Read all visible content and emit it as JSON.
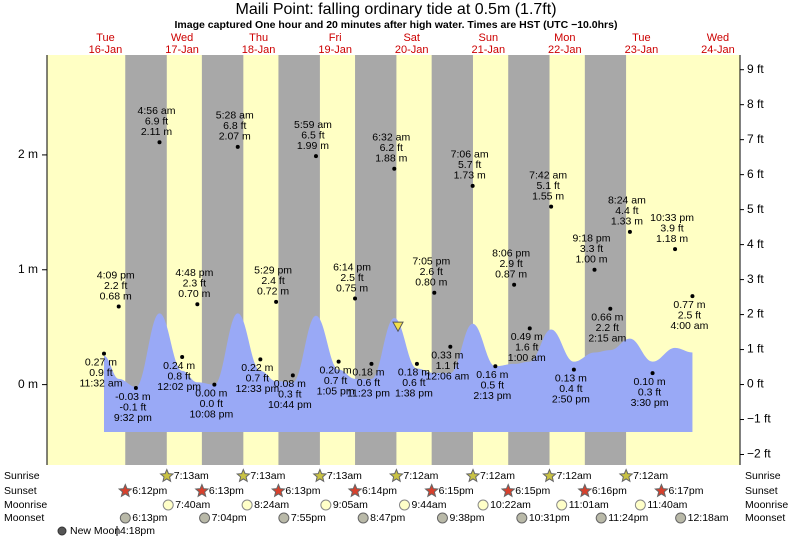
{
  "chart_data": {
    "type": "tide",
    "title": "Maili Point: falling  ordinary tide at 0.5m (1.7ft)",
    "subtitle": "Image captured One hour and 20 minutes after high water. Times are HST (UTC −10.0hrs)",
    "current_level": 0.5,
    "days": [
      "Tue",
      "Wed",
      "Thu",
      "Fri",
      "Sat",
      "Sun",
      "Mon",
      "Tue",
      "Wed"
    ],
    "categories": [
      "16-Jan",
      "17-Jan",
      "18-Jan",
      "19-Jan",
      "20-Jan",
      "21-Jan",
      "22-Jan",
      "23-Jan",
      "24-Jan"
    ],
    "ylim": [
      -0.7,
      2.87
    ],
    "yticks": [
      {
        "value": 0,
        "label": "0 m"
      },
      {
        "value": 1,
        "label": "1 m"
      },
      {
        "value": 2,
        "label": "2 m"
      }
    ],
    "y2lim": [
      -2.3,
      9.42
    ],
    "y2ticks": [
      {
        "value": -2,
        "label": "−2 ft"
      },
      {
        "value": -1,
        "label": "−1 ft"
      },
      {
        "value": 0,
        "label": "0 ft"
      },
      {
        "value": 1,
        "label": "1 ft"
      },
      {
        "value": 2,
        "label": "2 ft"
      },
      {
        "value": 3,
        "label": "3 ft"
      },
      {
        "value": 4,
        "label": "4 ft"
      },
      {
        "value": 5,
        "label": "5 ft"
      },
      {
        "value": 6,
        "label": "6 ft"
      },
      {
        "value": 7,
        "label": "7 ft"
      },
      {
        "value": 8,
        "label": "8 ft"
      },
      {
        "value": 9,
        "label": "9 ft"
      }
    ],
    "colors": {
      "day": "#ffffc4",
      "night": "#a8a8a8",
      "water": "#99a9f6",
      "day_label": "#cc0000"
    },
    "extremes": {
      "dates": [
        "16-Jan",
        "16-Jan",
        "16-Jan",
        "17-Jan",
        "17-Jan",
        "17-Jan",
        "17-Jan",
        "18-Jan",
        "18-Jan",
        "18-Jan",
        "18-Jan",
        "19-Jan",
        "19-Jan",
        "19-Jan",
        "19-Jan",
        "20-Jan",
        "20-Jan",
        "20-Jan",
        "21-Jan",
        "21-Jan",
        "21-Jan",
        "21-Jan",
        "22-Jan",
        "22-Jan",
        "22-Jan",
        "22-Jan",
        "23-Jan",
        "23-Jan",
        "23-Jan",
        "23-Jan",
        "24-Jan"
      ],
      "times": [
        "11:32 am",
        "4:09 pm",
        "9:32 pm",
        "4:56 am",
        "12:02 pm",
        "4:48 pm",
        "10:08 pm",
        "5:28 am",
        "12:33 pm",
        "5:29 pm",
        "10:44 pm",
        "5:59 am",
        "1:05 pm",
        "6:14 pm",
        "11:23 pm",
        "6:32 am",
        "1:38 pm",
        "7:05 pm",
        "12:06 am",
        "7:06 am",
        "2:13 pm",
        "8:06 pm",
        "1:00 am",
        "7:42 am",
        "2:50 pm",
        "9:18 pm",
        "2:15 am",
        "8:24 am",
        "3:30 pm",
        "10:33 pm",
        "4:00 am"
      ],
      "values": [
        0.27,
        0.68,
        -0.03,
        2.11,
        0.24,
        0.7,
        0.0,
        2.07,
        0.22,
        0.72,
        0.08,
        1.99,
        0.2,
        0.75,
        0.18,
        1.88,
        0.18,
        0.8,
        0.33,
        1.73,
        0.16,
        0.87,
        0.49,
        1.55,
        0.13,
        1.0,
        0.66,
        1.33,
        0.1,
        1.18,
        0.77
      ],
      "value_labels": [
        "0.27 m",
        "0.68 m",
        "-0.03 m",
        "2.11 m",
        "0.24 m",
        "0.70 m",
        "0.00 m",
        "2.07 m",
        "0.22 m",
        "0.72 m",
        "0.08 m",
        "1.99 m",
        "0.20 m",
        "0.75 m",
        "0.18 m",
        "1.88 m",
        "0.18 m",
        "0.80 m",
        "0.33 m",
        "1.73 m",
        "0.16 m",
        "0.87 m",
        "0.49 m",
        "1.55 m",
        "0.13 m",
        "1.00 m",
        "0.66 m",
        "1.33 m",
        "0.10 m",
        "1.18 m",
        "0.77 m"
      ],
      "ft_labels": [
        "0.9 ft",
        "2.2 ft",
        "-0.1 ft",
        "6.9 ft",
        "0.8 ft",
        "2.3 ft",
        "0.0 ft",
        "6.8 ft",
        "0.7 ft",
        "2.4 ft",
        "0.3 ft",
        "6.5 ft",
        "0.7 ft",
        "2.5 ft",
        "0.6 ft",
        "6.2 ft",
        "0.6 ft",
        "2.6 ft",
        "1.1 ft",
        "5.7 ft",
        "0.5 ft",
        "2.9 ft",
        "1.6 ft",
        "5.1 ft",
        "0.4 ft",
        "3.3 ft",
        "2.2 ft",
        "4.4 ft",
        "0.3 ft",
        "3.9 ft",
        "2.5 ft"
      ],
      "curve_values": [
        0.25,
        0.05,
        -0.02,
        0.62,
        0.12,
        0.02,
        0.0,
        0.62,
        0.12,
        0.03,
        0.02,
        0.6,
        0.13,
        0.05,
        0.05,
        0.58,
        0.14,
        0.1,
        0.1,
        0.53,
        0.16,
        0.18,
        0.2,
        0.48,
        0.2,
        0.28,
        0.3,
        0.4,
        0.2,
        0.32,
        0.28
      ]
    },
    "events": [
      {
        "label": "Sunrise",
        "dates": [
          "17-Jan",
          "18-Jan",
          "19-Jan",
          "20-Jan",
          "21-Jan",
          "22-Jan",
          "23-Jan"
        ],
        "times": [
          "7:13am",
          "7:13am",
          "7:13am",
          "7:12am",
          "7:12am",
          "7:12am",
          "7:12am"
        ]
      },
      {
        "label": "Sunset",
        "dates": [
          "16-Jan",
          "17-Jan",
          "18-Jan",
          "19-Jan",
          "20-Jan",
          "21-Jan",
          "22-Jan",
          "23-Jan"
        ],
        "times": [
          "6:12pm",
          "6:13pm",
          "6:13pm",
          "6:14pm",
          "6:15pm",
          "6:15pm",
          "6:16pm",
          "6:17pm"
        ]
      },
      {
        "label": "Moonrise",
        "dates": [
          "17-Jan",
          "18-Jan",
          "19-Jan",
          "20-Jan",
          "21-Jan",
          "22-Jan",
          "23-Jan"
        ],
        "times": [
          "7:40am",
          "8:24am",
          "9:05am",
          "9:44am",
          "10:22am",
          "11:01am",
          "11:40am"
        ]
      },
      {
        "label": "Moonset",
        "dates": [
          "16-Jan",
          "17-Jan",
          "18-Jan",
          "19-Jan",
          "20-Jan",
          "21-Jan",
          "22-Jan",
          "24-Jan"
        ],
        "times": [
          "6:13pm",
          "7:04pm",
          "7:55pm",
          "8:47pm",
          "9:38pm",
          "10:31pm",
          "11:24pm",
          "12:18am"
        ]
      }
    ],
    "moon_phase": {
      "name": "New Moon",
      "time": "4:18pm"
    }
  }
}
